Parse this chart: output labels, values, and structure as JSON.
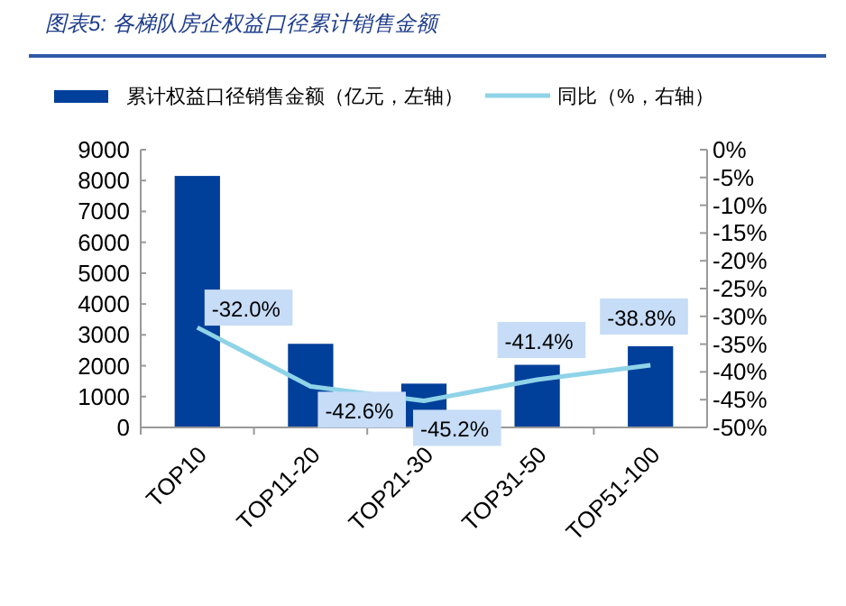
{
  "chart_data": {
    "type": "bar",
    "title": "图表5: 各梯队房企权益口径累计销售金额",
    "categories": [
      "TOP10",
      "TOP11-20",
      "TOP21-30",
      "TOP31-50",
      "TOP51-100"
    ],
    "series": [
      {
        "name": "累计权益口径销售金额（亿元，左轴）",
        "color": "#003f9a",
        "values": [
          8150,
          2710,
          1420,
          2030,
          2630
        ]
      },
      {
        "name": "同比（%，右轴）",
        "type": "line",
        "axis": "y2",
        "color": "#8fd3e8",
        "values": [
          -32.0,
          -42.6,
          -45.2,
          -41.4,
          -38.8
        ],
        "value_labels": [
          "-32.0%",
          "-42.6%",
          "-45.2%",
          "-41.4%",
          "-38.8%"
        ]
      }
    ],
    "ylim": [
      0,
      9000
    ],
    "yticks": [
      0,
      1000,
      2000,
      3000,
      4000,
      5000,
      6000,
      7000,
      8000,
      9000
    ],
    "y2lim": [
      -50,
      0
    ],
    "y2ticks": [
      {
        "value": -50,
        "label": "-50%"
      },
      {
        "value": -45,
        "label": "-45%"
      },
      {
        "value": -40,
        "label": "-40%"
      },
      {
        "value": -35,
        "label": "-35%"
      },
      {
        "value": -30,
        "label": "-30%"
      },
      {
        "value": -25,
        "label": "-25%"
      },
      {
        "value": -20,
        "label": "-20%"
      },
      {
        "value": -15,
        "label": "-15%"
      },
      {
        "value": -10,
        "label": "-10%"
      },
      {
        "value": -5,
        "label": "-5%"
      },
      {
        "value": 0,
        "label": "0%"
      }
    ],
    "legend": "top",
    "grid": false
  }
}
